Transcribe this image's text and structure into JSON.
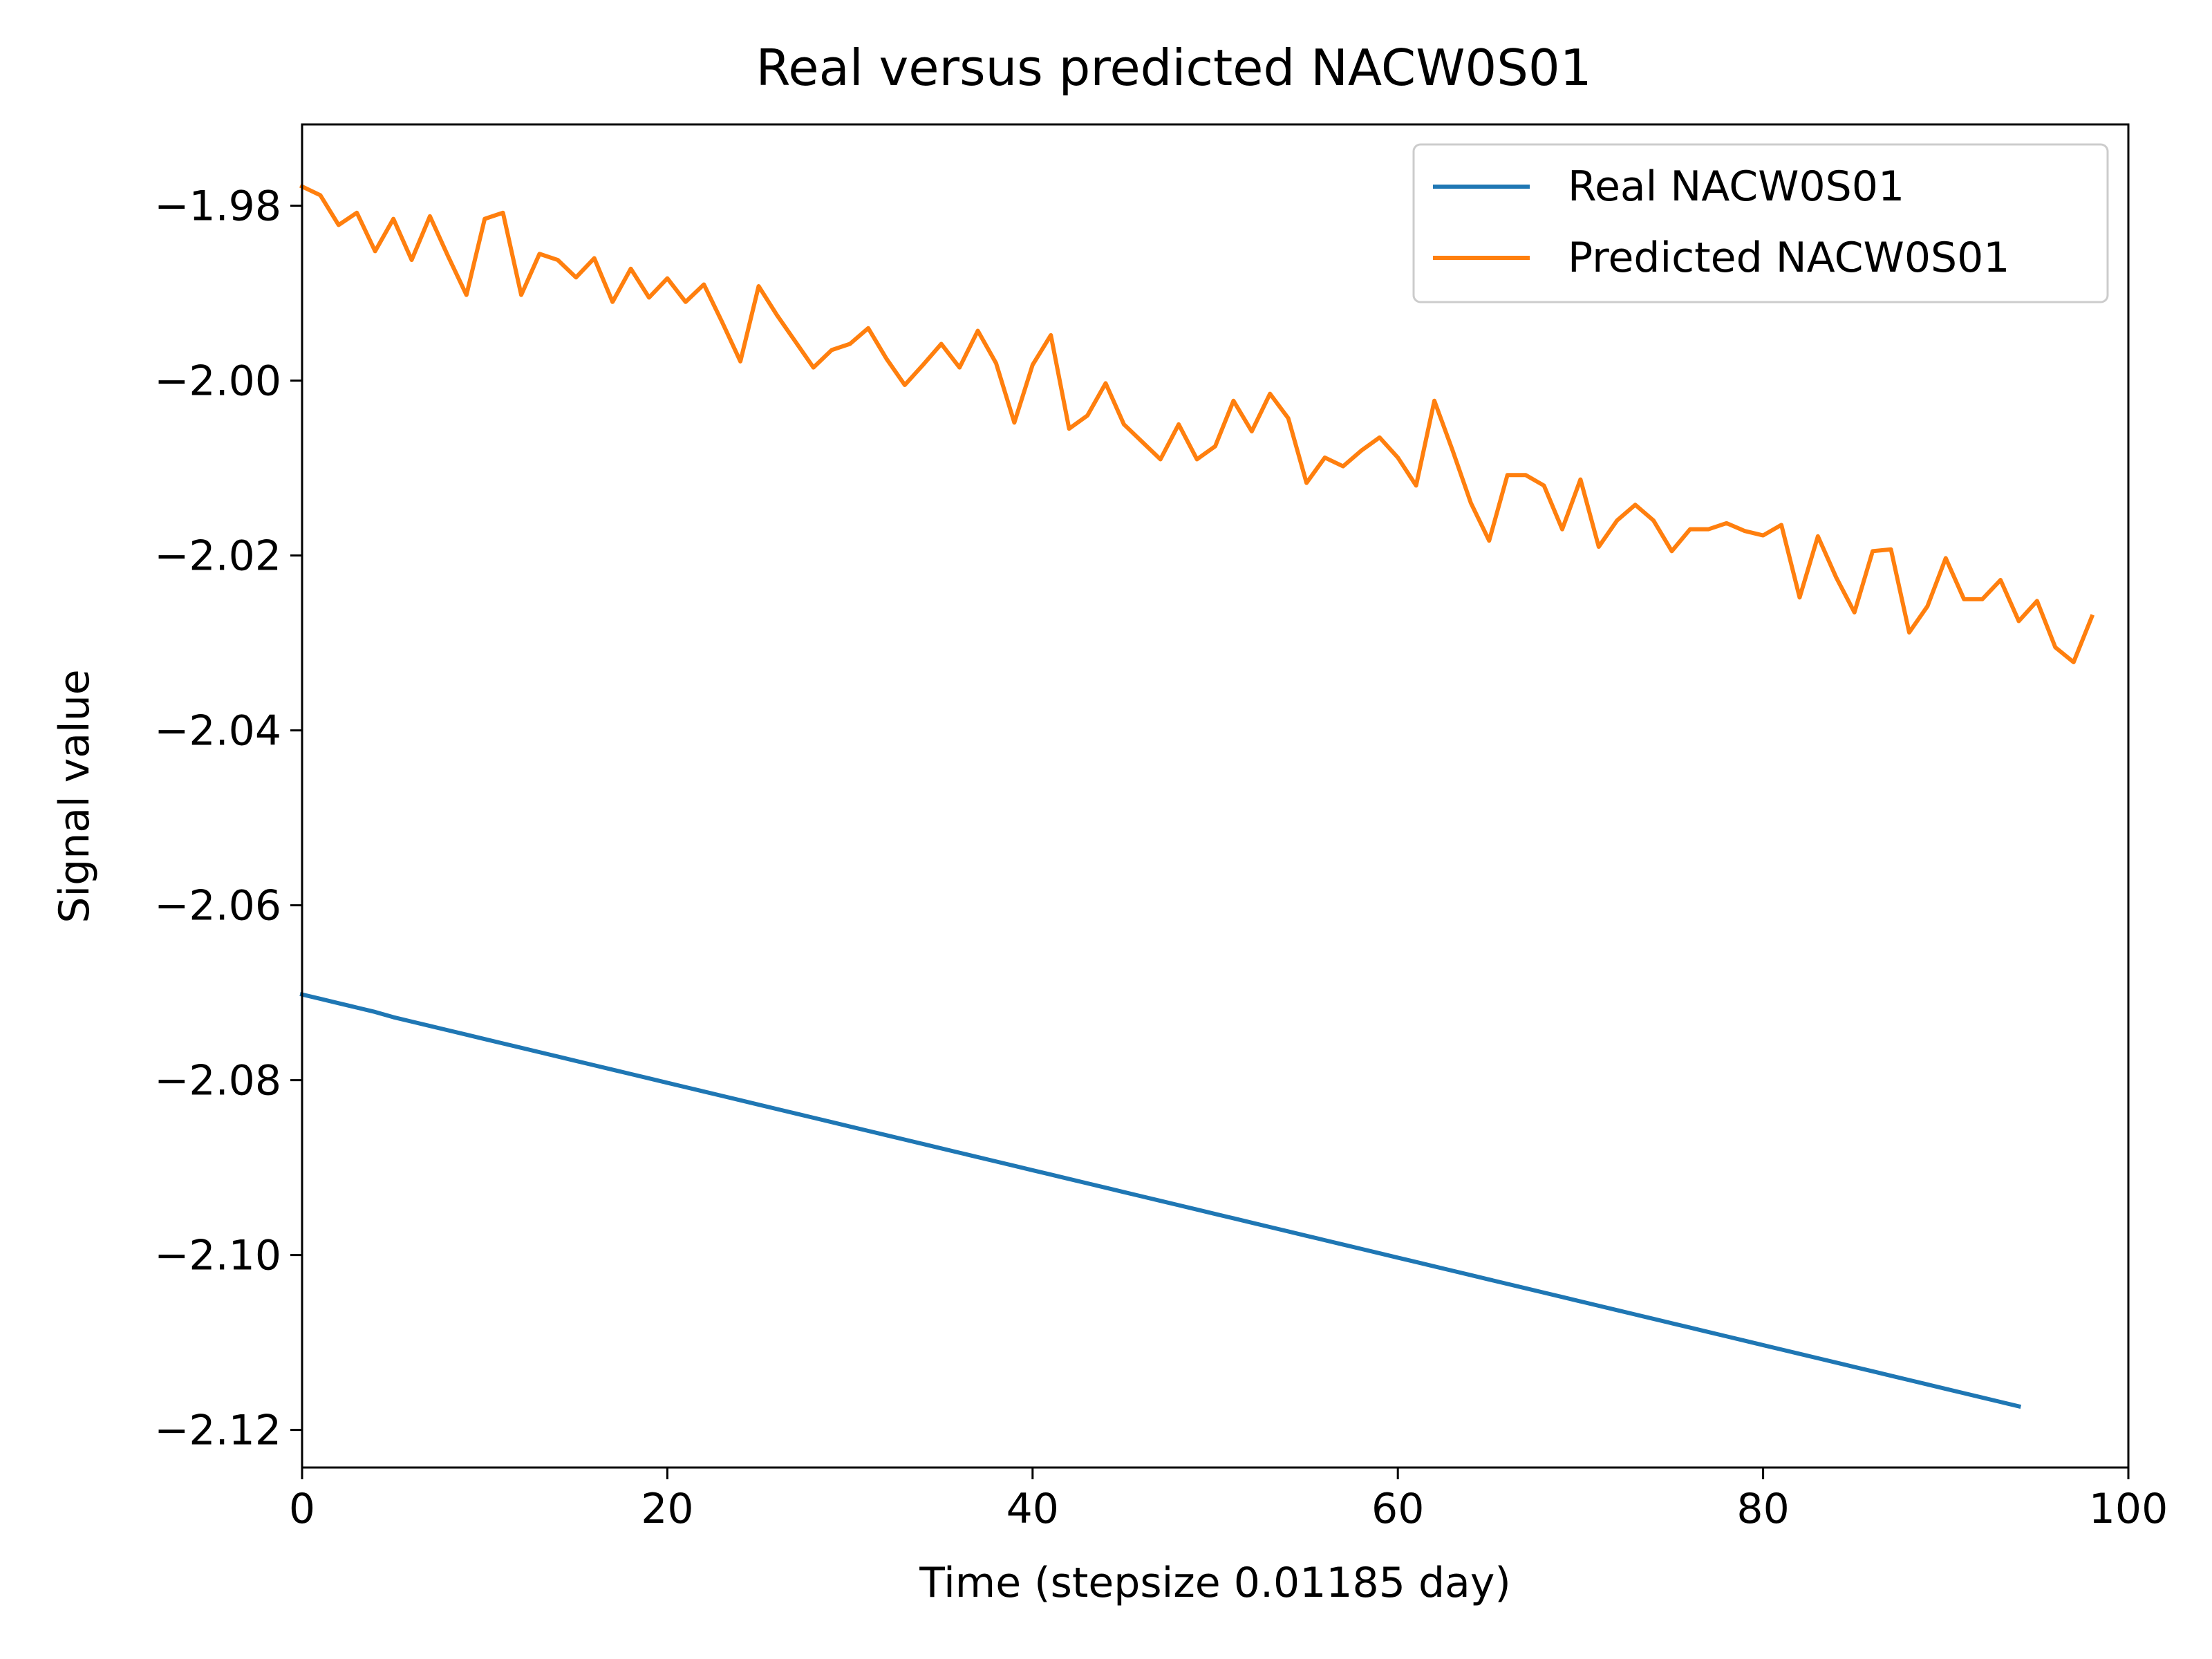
{
  "chart_data": {
    "type": "line",
    "title": "Real versus predicted NACW0S01",
    "xlabel": "Time (stepsize 0.01185 day)",
    "ylabel": "Signal value",
    "xlim": [
      0,
      100
    ],
    "ylim": [
      -2.1243,
      -1.9707
    ],
    "xticks": [
      0,
      20,
      40,
      60,
      80,
      100
    ],
    "xtick_labels": [
      "0",
      "20",
      "40",
      "60",
      "80",
      "100"
    ],
    "yticks": [
      -1.98,
      -2.0,
      -2.02,
      -2.04,
      -2.06,
      -2.08,
      -2.1,
      -2.12
    ],
    "ytick_labels": [
      "−1.98",
      "−2.00",
      "−2.02",
      "−2.04",
      "−2.06",
      "−2.08",
      "−2.10",
      "−2.12"
    ],
    "grid": false,
    "legend_position": "top-right",
    "x_start": 0,
    "x_step": 1,
    "series": [
      {
        "name": "Real NACW0S01",
        "color": "#1f77b4",
        "values": [
          -2.0702,
          -2.0707,
          -2.0712,
          -2.0717,
          -2.0722,
          -2.0728,
          -2.0733,
          -2.0738,
          -2.0743,
          -2.0748,
          -2.0753,
          -2.0758,
          -2.0763,
          -2.0768,
          -2.0773,
          -2.0778,
          -2.0783,
          -2.0788,
          -2.0793,
          -2.0798,
          -2.0803,
          -2.0808,
          -2.0813,
          -2.0818,
          -2.0823,
          -2.0828,
          -2.0833,
          -2.0838,
          -2.0843,
          -2.0848,
          -2.0853,
          -2.0858,
          -2.0863,
          -2.0868,
          -2.0873,
          -2.0878,
          -2.0883,
          -2.0888,
          -2.0893,
          -2.0898,
          -2.0903,
          -2.0908,
          -2.0913,
          -2.0918,
          -2.0923,
          -2.0928,
          -2.0933,
          -2.0938,
          -2.0943,
          -2.0948,
          -2.0953,
          -2.0958,
          -2.0963,
          -2.0968,
          -2.0973,
          -2.0978,
          -2.0983,
          -2.0988,
          -2.0993,
          -2.0998,
          -2.1003,
          -2.1008,
          -2.1013,
          -2.1018,
          -2.1023,
          -2.1028,
          -2.1033,
          -2.1038,
          -2.1043,
          -2.1048,
          -2.1053,
          -2.1058,
          -2.1063,
          -2.1068,
          -2.1073,
          -2.1078,
          -2.1083,
          -2.1088,
          -2.1093,
          -2.1098,
          -2.1103,
          -2.1108,
          -2.1113,
          -2.1118,
          -2.1123,
          -2.1128,
          -2.1133,
          -2.1138,
          -2.1143,
          -2.1148,
          -2.1153,
          -2.1158,
          -2.1163,
          -2.1168,
          -2.1173
        ]
      },
      {
        "name": "Predicted NACW0S01",
        "color": "#ff7f0e",
        "values": [
          -1.9778,
          -1.9788,
          -1.9822,
          -1.9808,
          -1.9852,
          -1.9815,
          -1.9862,
          -1.9812,
          -1.9858,
          -1.9902,
          -1.9815,
          -1.9808,
          -1.9902,
          -1.9855,
          -1.9862,
          -1.9882,
          -1.986,
          -1.991,
          -1.9872,
          -1.9905,
          -1.9883,
          -1.991,
          -1.989,
          -1.9933,
          -1.9978,
          -1.9892,
          -1.9925,
          -1.9955,
          -1.9985,
          -1.9965,
          -1.9958,
          -1.994,
          -1.9975,
          -2.0005,
          -1.9982,
          -1.9958,
          -1.9985,
          -1.9943,
          -1.998,
          -2.0048,
          -1.9982,
          -1.9948,
          -2.0055,
          -2.004,
          -2.0003,
          -2.005,
          -2.007,
          -2.009,
          -2.005,
          -2.009,
          -2.0075,
          -2.0023,
          -2.0058,
          -2.0015,
          -2.0043,
          -2.0117,
          -2.0088,
          -2.0098,
          -2.008,
          -2.0065,
          -2.0088,
          -2.012,
          -2.0023,
          -2.008,
          -2.014,
          -2.0183,
          -2.0108,
          -2.0108,
          -2.012,
          -2.017,
          -2.0113,
          -2.019,
          -2.016,
          -2.0142,
          -2.016,
          -2.0195,
          -2.017,
          -2.017,
          -2.0163,
          -2.0172,
          -2.0177,
          -2.0165,
          -2.0248,
          -2.0178,
          -2.0225,
          -2.0265,
          -2.0195,
          -2.0193,
          -2.0288,
          -2.0258,
          -2.0203,
          -2.025,
          -2.025,
          -2.0228,
          -2.0275,
          -2.0252,
          -2.0305,
          -2.0322,
          -2.027
        ]
      }
    ]
  }
}
